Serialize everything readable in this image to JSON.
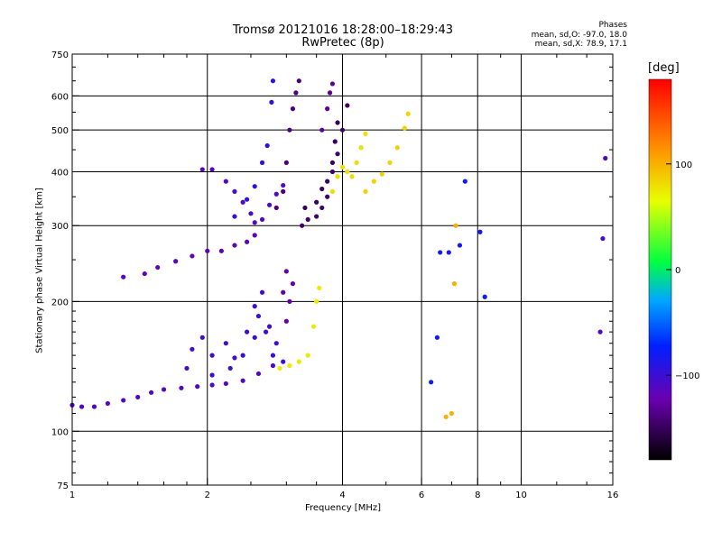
{
  "header": {
    "title_line1": "Tromsø 20121016 18:28:00–18:29:43",
    "title_line2": "RwPretec (8p)",
    "phase_title": "Phases",
    "stat_line0": "mean, sd,O: -97.0, 18.0",
    "stat_lineX": "mean, sd,X:  78.9, 17.1"
  },
  "colorbar": {
    "label": "[deg]",
    "ticks": [
      {
        "value": 100,
        "label": "100"
      },
      {
        "value": 0,
        "label": "0"
      },
      {
        "value": -100,
        "label": "−100"
      }
    ],
    "range": [
      -180,
      180
    ]
  },
  "chart_data": {
    "type": "scatter",
    "xlabel": "Frequency [MHz]",
    "ylabel": "Stationary phase Virtual Height [km]",
    "xscale": "log",
    "yscale": "log",
    "xlim": [
      1,
      16
    ],
    "ylim": [
      75,
      750
    ],
    "x_ticks": [
      {
        "value": 1,
        "label": "1"
      },
      {
        "value": 2,
        "label": "2"
      },
      {
        "value": 4,
        "label": "4"
      },
      {
        "value": 6,
        "label": "6"
      },
      {
        "value": 8,
        "label": "8"
      },
      {
        "value": 10,
        "label": "10"
      },
      {
        "value": 16,
        "label": "16"
      }
    ],
    "y_ticks": [
      {
        "value": 75,
        "label": "75"
      },
      {
        "value": 100,
        "label": "100"
      },
      {
        "value": 200,
        "label": "200"
      },
      {
        "value": 300,
        "label": "300"
      },
      {
        "value": 400,
        "label": "400"
      },
      {
        "value": 500,
        "label": "500"
      },
      {
        "value": 600,
        "label": "600"
      },
      {
        "value": 750,
        "label": "750"
      }
    ],
    "x_grid": [
      2,
      4,
      6,
      8,
      10
    ],
    "y_grid": [
      100,
      200,
      300,
      400,
      500,
      600
    ],
    "grid": true,
    "traces": [
      {
        "phase": -110,
        "points": [
          [
            1.0,
            115
          ],
          [
            1.05,
            114
          ],
          [
            1.12,
            114
          ],
          [
            1.2,
            116
          ],
          [
            1.3,
            118
          ],
          [
            1.4,
            120
          ],
          [
            1.5,
            123
          ],
          [
            1.6,
            125
          ],
          [
            1.75,
            126
          ],
          [
            1.9,
            127
          ],
          [
            2.05,
            128
          ],
          [
            2.2,
            129
          ],
          [
            2.4,
            131
          ],
          [
            2.6,
            136
          ],
          [
            2.8,
            142
          ]
        ]
      },
      {
        "phase": -105,
        "points": [
          [
            1.8,
            140
          ],
          [
            1.85,
            155
          ],
          [
            1.95,
            165
          ],
          [
            2.05,
            150
          ],
          [
            2.2,
            160
          ],
          [
            2.3,
            148
          ],
          [
            2.45,
            170
          ],
          [
            2.55,
            195
          ],
          [
            2.65,
            210
          ],
          [
            2.75,
            175
          ],
          [
            2.85,
            160
          ]
        ]
      },
      {
        "phase": -100,
        "points": [
          [
            2.05,
            135
          ],
          [
            2.25,
            140
          ],
          [
            2.4,
            150
          ],
          [
            2.55,
            165
          ],
          [
            2.6,
            185
          ],
          [
            2.7,
            170
          ],
          [
            2.8,
            150
          ],
          [
            2.95,
            145
          ]
        ]
      },
      {
        "phase": -125,
        "points": [
          [
            3.0,
            180
          ],
          [
            3.05,
            200
          ],
          [
            3.1,
            220
          ],
          [
            3.0,
            235
          ],
          [
            2.95,
            210
          ]
        ]
      },
      {
        "phase": -115,
        "points": [
          [
            1.3,
            228
          ],
          [
            1.45,
            232
          ],
          [
            1.55,
            240
          ],
          [
            1.7,
            248
          ],
          [
            1.85,
            255
          ],
          [
            2.0,
            262
          ],
          [
            2.15,
            262
          ],
          [
            2.3,
            270
          ],
          [
            2.45,
            275
          ],
          [
            2.55,
            285
          ]
        ]
      },
      {
        "phase": -110,
        "points": [
          [
            1.95,
            405
          ],
          [
            2.05,
            405
          ],
          [
            2.2,
            380
          ],
          [
            2.3,
            360
          ],
          [
            2.4,
            340
          ],
          [
            2.5,
            320
          ],
          [
            2.55,
            305
          ],
          [
            2.65,
            310
          ],
          [
            2.75,
            335
          ],
          [
            2.85,
            355
          ],
          [
            2.95,
            372
          ]
        ]
      },
      {
        "phase": -95,
        "points": [
          [
            2.3,
            315
          ],
          [
            2.45,
            345
          ],
          [
            2.55,
            370
          ],
          [
            2.65,
            420
          ],
          [
            2.72,
            460
          ],
          [
            2.78,
            580
          ],
          [
            2.8,
            650
          ]
        ]
      },
      {
        "phase": -140,
        "points": [
          [
            2.85,
            330
          ],
          [
            2.95,
            360
          ],
          [
            3.0,
            420
          ],
          [
            3.05,
            500
          ],
          [
            3.1,
            560
          ],
          [
            3.15,
            610
          ],
          [
            3.2,
            650
          ]
        ]
      },
      {
        "phase": -145,
        "points": [
          [
            3.25,
            300
          ],
          [
            3.35,
            310
          ],
          [
            3.5,
            315
          ],
          [
            3.6,
            330
          ],
          [
            3.7,
            350
          ],
          [
            3.8,
            400
          ],
          [
            3.9,
            440
          ],
          [
            4.0,
            500
          ],
          [
            4.1,
            570
          ]
        ]
      },
      {
        "phase": -150,
        "points": [
          [
            3.3,
            330
          ],
          [
            3.5,
            340
          ],
          [
            3.6,
            365
          ],
          [
            3.7,
            380
          ],
          [
            3.8,
            420
          ],
          [
            3.85,
            470
          ],
          [
            3.9,
            520
          ]
        ]
      },
      {
        "phase": -130,
        "points": [
          [
            3.6,
            500
          ],
          [
            3.7,
            560
          ],
          [
            3.75,
            610
          ],
          [
            3.8,
            640
          ]
        ]
      },
      {
        "phase": 75,
        "points": [
          [
            2.9,
            140
          ],
          [
            3.05,
            142
          ],
          [
            3.2,
            145
          ],
          [
            3.35,
            150
          ],
          [
            3.45,
            175
          ],
          [
            3.5,
            200
          ],
          [
            3.55,
            215
          ]
        ]
      },
      {
        "phase": 80,
        "points": [
          [
            3.8,
            360
          ],
          [
            3.9,
            390
          ],
          [
            4.0,
            410
          ],
          [
            4.1,
            400
          ],
          [
            4.2,
            390
          ],
          [
            4.3,
            420
          ],
          [
            4.4,
            455
          ],
          [
            4.5,
            490
          ]
        ]
      },
      {
        "phase": 85,
        "points": [
          [
            4.5,
            360
          ],
          [
            4.7,
            380
          ],
          [
            4.9,
            395
          ],
          [
            5.1,
            420
          ],
          [
            5.3,
            455
          ],
          [
            5.5,
            505
          ],
          [
            5.6,
            545
          ]
        ]
      },
      {
        "phase": 100,
        "points": [
          [
            6.8,
            108
          ],
          [
            7.0,
            110
          ],
          [
            7.1,
            220
          ],
          [
            7.15,
            300
          ]
        ]
      },
      {
        "phase": -80,
        "points": [
          [
            6.3,
            130
          ],
          [
            6.5,
            165
          ],
          [
            6.6,
            260
          ],
          [
            6.9,
            260
          ],
          [
            7.3,
            270
          ],
          [
            7.5,
            380
          ],
          [
            8.1,
            290
          ],
          [
            8.3,
            205
          ]
        ]
      },
      {
        "phase": -110,
        "points": [
          [
            15.0,
            170
          ],
          [
            15.2,
            280
          ],
          [
            15.4,
            430
          ]
        ]
      }
    ]
  }
}
